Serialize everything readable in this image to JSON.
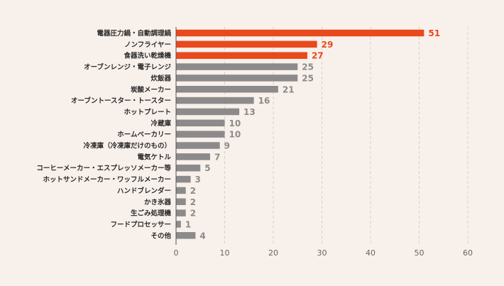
{
  "chart_data": {
    "type": "bar",
    "orientation": "horizontal",
    "title": "",
    "xlabel": "",
    "ylabel": "",
    "xlim": [
      0,
      60
    ],
    "xticks": [
      0,
      10,
      20,
      30,
      40,
      50,
      60
    ],
    "grid": true,
    "categories": [
      "電器圧力鍋・自動調理鍋",
      "ノンフライヤー",
      "食器洗い乾燥機",
      "オーブンレンジ・電子レンジ",
      "炊飯器",
      "炭酸メーカー",
      "オーブントースター・トースター",
      "ホットプレート",
      "冷蔵庫",
      "ホームベーカリー",
      "冷凍庫（冷凍庫だけのもの）",
      "電気ケトル",
      "コーヒーメーカー・エスプレッソメーカー等",
      "ホットサンドメーカー・ワッフルメーカー",
      "ハンドブレンダー",
      "かき氷器",
      "生ごみ処理機",
      "フードプロセッサー",
      "その他"
    ],
    "values": [
      51,
      29,
      27,
      25,
      25,
      21,
      16,
      13,
      10,
      10,
      9,
      7,
      5,
      3,
      2,
      2,
      2,
      1,
      4
    ],
    "highlight_count": 3,
    "colors": {
      "highlight": "#e8491d",
      "default": "#8c8a8a",
      "highlight_text": "#e8491d",
      "default_text": "#8c8a8a",
      "grid": "#d9cfc9",
      "axis": "#555555",
      "background": "#f8f0eb"
    }
  }
}
